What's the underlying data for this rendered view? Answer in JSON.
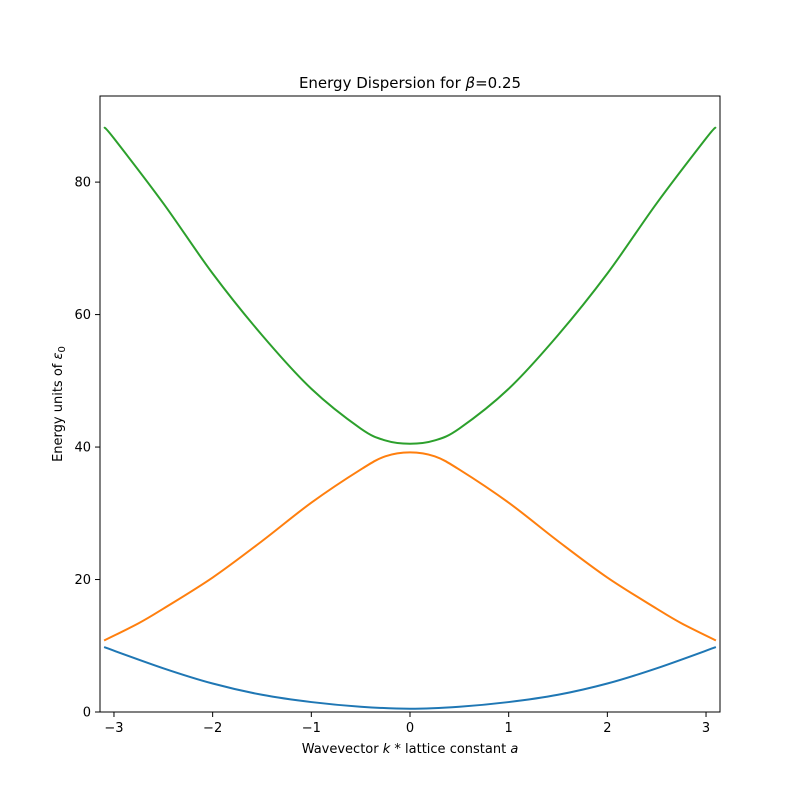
{
  "chart_data": {
    "type": "line",
    "title_prefix": "Energy Dispersion for ",
    "title_symbol": "β",
    "title_suffix": "=0.25",
    "xlabel_prefix": "Wavevector ",
    "xlabel_k": "k",
    "xlabel_mid": " * lattice constant ",
    "xlabel_a": "a",
    "ylabel_prefix": "Energy units of ",
    "ylabel_symbol": "ε",
    "ylabel_sub": "0",
    "xlim": [
      -3.1416,
      3.1416
    ],
    "ylim": [
      0,
      93
    ],
    "xticks": [
      -3,
      -2,
      -1,
      0,
      1,
      2,
      3
    ],
    "xtick_labels": [
      "−3",
      "−2",
      "−1",
      "0",
      "1",
      "2",
      "3"
    ],
    "yticks": [
      0,
      20,
      40,
      60,
      80
    ],
    "ytick_labels": [
      "0",
      "20",
      "40",
      "60",
      "80"
    ],
    "grid": false,
    "series": [
      {
        "color": "#1f77b4",
        "x": [
          -3.1,
          -2.5,
          -2.0,
          -1.5,
          -1.0,
          -0.5,
          0.0,
          0.5,
          1.0,
          1.5,
          2.0,
          2.5,
          3.1
        ],
        "y": [
          9.8,
          6.6,
          4.3,
          2.6,
          1.5,
          0.8,
          0.5,
          0.8,
          1.5,
          2.6,
          4.3,
          6.6,
          9.8
        ]
      },
      {
        "color": "#ff7f0e",
        "x": [
          -3.1,
          -2.75,
          -2.5,
          -2.0,
          -1.5,
          -1.0,
          -0.5,
          -0.25,
          0.0,
          0.25,
          0.5,
          1.0,
          1.5,
          2.0,
          2.5,
          2.75,
          3.1
        ],
        "y": [
          10.8,
          13.4,
          15.6,
          20.3,
          25.8,
          31.6,
          36.6,
          38.6,
          39.2,
          38.6,
          36.6,
          31.6,
          25.8,
          20.3,
          15.6,
          13.4,
          10.8
        ]
      },
      {
        "color": "#2ca02c",
        "x": [
          -3.1,
          -3.0,
          -2.5,
          -2.0,
          -1.5,
          -1.0,
          -0.5,
          -0.25,
          0.0,
          0.25,
          0.5,
          1.0,
          1.5,
          2.0,
          2.5,
          3.0,
          3.1
        ],
        "y": [
          88.3,
          86.6,
          76.8,
          66.2,
          56.9,
          48.8,
          42.8,
          41.0,
          40.5,
          41.0,
          42.8,
          48.8,
          56.9,
          66.2,
          76.8,
          86.6,
          88.3
        ]
      }
    ]
  }
}
